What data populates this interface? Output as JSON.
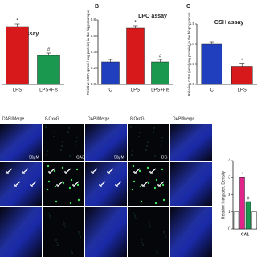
{
  "panels": [
    {
      "title": "ROS assay",
      "categories": [
        "LPS",
        "LPS+Fis"
      ],
      "values": [
        1.8,
        0.9
      ],
      "colors": [
        "#d7191c",
        "#1a9850"
      ],
      "annotations": [
        "*",
        "#"
      ]
    },
    {
      "label": "B",
      "title": "LPO assay",
      "ylabel": "Relative MDA (pmol / mg protein) in the hippocampus",
      "categories": [
        "C",
        "LPS",
        "LPS+Fis"
      ],
      "values": [
        0.28,
        0.7,
        0.28
      ],
      "colors": [
        "#1f3fbf",
        "#d7191c",
        "#1a9850"
      ],
      "annotations": [
        null,
        "*",
        "#"
      ],
      "ylim": [
        0,
        0.8
      ],
      "yticks": [
        {
          "value": 0,
          "label": "0.0"
        },
        {
          "value": 0.2,
          "label": "0.2"
        },
        {
          "value": 0.4,
          "label": "0.4"
        },
        {
          "value": 0.6,
          "label": "0.6"
        },
        {
          "value": 0.8,
          "label": "0.8"
        }
      ]
    },
    {
      "label": "C",
      "title": "GSH assay",
      "ylabel": "Relative GSH (nmol/mg protein) in the hippocampus",
      "categories": [
        "C",
        "LPS"
      ],
      "values": [
        1.0,
        0.45
      ],
      "colors": [
        "#1f3fbf",
        "#d7191c"
      ],
      "annotations": [
        null,
        "*"
      ],
      "ylim": [
        0,
        1.5
      ],
      "yticks": [
        {
          "value": 0,
          "label": "0.0"
        },
        {
          "value": 0.5,
          "label": "0.5"
        },
        {
          "value": 1,
          "label": "1.0"
        },
        {
          "value": 1.5,
          "label": "1.5"
        }
      ]
    }
  ],
  "micrographs": {
    "headers": [
      "DAPI/Merge",
      "8-OxoG",
      "DAPI/Merge",
      "8-OxoG",
      "DAPI/Merge"
    ],
    "scale_labels": [
      "50μM",
      "50μM"
    ],
    "region_labels": [
      "CA3",
      "DG"
    ]
  },
  "density": {
    "ylabel": "Relative Integrated Density",
    "xlabel": "CA1",
    "values": [
      1.0,
      3.0,
      1.6,
      1.0
    ],
    "colors": [
      "#ffffff",
      "#e0248a",
      "#1a9850",
      "#ffffff"
    ],
    "annotations": [
      null,
      "*",
      "#",
      null
    ],
    "ylim": [
      0,
      4
    ],
    "yticks": [
      0,
      1,
      2,
      3,
      4
    ]
  }
}
